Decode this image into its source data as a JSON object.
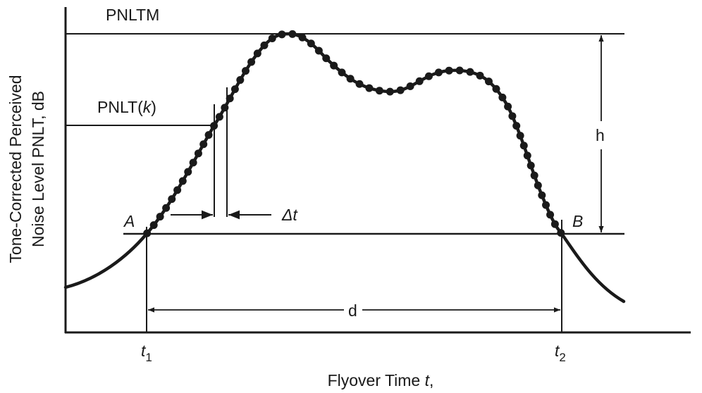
{
  "labels": {
    "pnltm": "PNLTM",
    "pnltk_prefix": "PNLT(",
    "pnltk_var": "k",
    "pnltk_suffix": ")",
    "point_a": "A",
    "point_b": "B",
    "delta_t": "Δt",
    "h": "h",
    "d": "d",
    "t1_var": "t",
    "t1_sub": "1",
    "t2_var": "t",
    "t2_sub": "2"
  },
  "axes": {
    "ylabel_line1": "Tone-Corrected Perceived",
    "ylabel_line2": "Noise Level PNLT, dB",
    "xlabel_prefix": "Flyover Time ",
    "xlabel_var": "t",
    "xlabel_suffix": ","
  },
  "colors": {
    "ink": "#1a1a1a"
  }
}
